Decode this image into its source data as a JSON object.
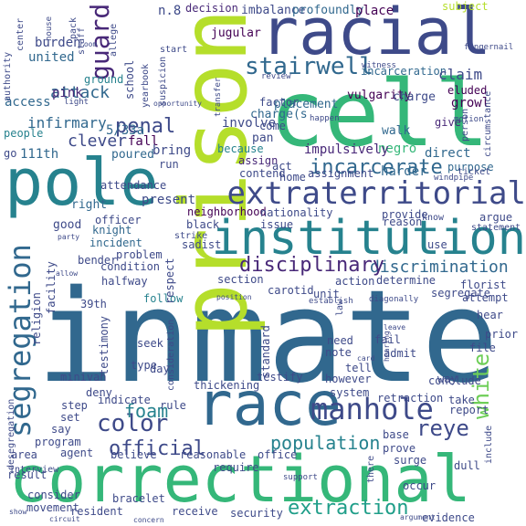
{
  "colors": {
    "background": "#ffffff",
    "palette": [
      "#440154",
      "#482878",
      "#3e4a89",
      "#31688e",
      "#26828e",
      "#1f9e89",
      "#35b779",
      "#6ece58",
      "#b5de2b",
      "#fde725"
    ]
  },
  "words": [
    {
      "text": "inmate",
      "color": "#31688e"
    },
    {
      "text": "cell",
      "color": "#35b779"
    },
    {
      "text": "prison",
      "color": "#b5de2b"
    },
    {
      "text": "racial",
      "color": "#3e4a89"
    },
    {
      "text": "correctional",
      "color": "#35b779"
    },
    {
      "text": "race",
      "color": "#31688e"
    },
    {
      "text": "pole",
      "color": "#26828e"
    },
    {
      "text": "institution",
      "color": "#26828e"
    },
    {
      "text": "extraterritorial",
      "color": "#3e4a89"
    },
    {
      "text": "segregation",
      "color": "#31688e"
    },
    {
      "text": "manhole",
      "color": "#3e4a89"
    },
    {
      "text": "stairwell",
      "color": "#31688e"
    },
    {
      "text": "guard",
      "color": "#482878"
    },
    {
      "text": "color",
      "color": "#3e4a89"
    },
    {
      "text": "white",
      "color": "#6ece58"
    },
    {
      "text": "extraction",
      "color": "#1f9e89"
    },
    {
      "text": "discrimination",
      "color": "#31688e"
    },
    {
      "text": "disciplinary",
      "color": "#482878"
    },
    {
      "text": "incarcerate",
      "color": "#31688e"
    },
    {
      "text": "official",
      "color": "#3e4a89"
    },
    {
      "text": "population",
      "color": "#26828e"
    },
    {
      "text": "reye",
      "color": "#3e4a89"
    },
    {
      "text": "penal",
      "color": "#3e4a89"
    },
    {
      "text": "attack",
      "color": "#31688e"
    },
    {
      "text": "foam",
      "color": "#26828e"
    },
    {
      "text": "infirmary",
      "color": "#31688e"
    },
    {
      "text": "5/33a",
      "color": "#31688e"
    },
    {
      "text": "clever",
      "color": "#3e4a89"
    },
    {
      "text": "fall",
      "color": "#440154"
    },
    {
      "text": "n.8",
      "color": "#3e4a89"
    },
    {
      "text": "decision",
      "color": "#482878"
    },
    {
      "text": "imbalance",
      "color": "#3e4a89"
    },
    {
      "text": "profoundly",
      "color": "#31688e"
    },
    {
      "text": "place",
      "color": "#440154"
    },
    {
      "text": "subject",
      "color": "#b5de2b"
    },
    {
      "text": "jugular",
      "color": "#440154"
    },
    {
      "text": "incarceration",
      "color": "#31688e"
    },
    {
      "text": "claim",
      "color": "#3e4a89"
    },
    {
      "text": "eluded",
      "color": "#440154"
    },
    {
      "text": "burden",
      "color": "#3e4a89"
    },
    {
      "text": "united",
      "color": "#31688e"
    },
    {
      "text": "pink",
      "color": "#482878"
    },
    {
      "text": "ground",
      "color": "#26828e"
    },
    {
      "text": "access",
      "color": "#31688e"
    },
    {
      "text": "people",
      "color": "#26828e"
    },
    {
      "text": "go",
      "color": "#3e4a89"
    },
    {
      "text": "111th",
      "color": "#31688e"
    },
    {
      "text": "vulgarity",
      "color": "#440154"
    },
    {
      "text": "growl",
      "color": "#440154"
    },
    {
      "text": "charge",
      "color": "#3e4a89"
    },
    {
      "text": "give",
      "color": "#482878"
    },
    {
      "text": "walk",
      "color": "#31688e"
    },
    {
      "text": "direct",
      "color": "#31688e"
    },
    {
      "text": "purpose",
      "color": "#31688e"
    },
    {
      "text": "harder",
      "color": "#31688e"
    },
    {
      "text": "negro",
      "color": "#35b779"
    },
    {
      "text": "impulsively",
      "color": "#482878"
    },
    {
      "text": "factor",
      "color": "#3e4a89"
    },
    {
      "text": "placement",
      "color": "#31688e"
    },
    {
      "text": "charge(s",
      "color": "#31688e"
    },
    {
      "text": "come",
      "color": "#3e4a89"
    },
    {
      "text": "involve",
      "color": "#3e4a89"
    },
    {
      "text": "pan",
      "color": "#3e4a89"
    },
    {
      "text": "because",
      "color": "#26828e"
    },
    {
      "text": "assign",
      "color": "#482878"
    },
    {
      "text": "act",
      "color": "#3e4a89"
    },
    {
      "text": "contend",
      "color": "#3e4a89"
    },
    {
      "text": "home",
      "color": "#3e4a89"
    },
    {
      "text": "assignment",
      "color": "#3e4a89"
    },
    {
      "text": "bring",
      "color": "#3e4a89"
    },
    {
      "text": "poured",
      "color": "#31688e"
    },
    {
      "text": "run",
      "color": "#3e4a89"
    },
    {
      "text": "present",
      "color": "#3e4a89"
    },
    {
      "text": "right",
      "color": "#31688e"
    },
    {
      "text": "good",
      "color": "#3e4a89"
    },
    {
      "text": "officer",
      "color": "#3e4a89"
    },
    {
      "text": "knight",
      "color": "#31688e"
    },
    {
      "text": "incident",
      "color": "#31688e"
    },
    {
      "text": "neighborhood",
      "color": "#440154"
    },
    {
      "text": "nationality",
      "color": "#3e4a89"
    },
    {
      "text": "provide",
      "color": "#3e4a89"
    },
    {
      "text": "black",
      "color": "#3e4a89"
    },
    {
      "text": "issue",
      "color": "#3e4a89"
    },
    {
      "text": "reason",
      "color": "#3e4a89"
    },
    {
      "text": "argue",
      "color": "#3e4a89"
    },
    {
      "text": "statement",
      "color": "#3e4a89"
    },
    {
      "text": "use",
      "color": "#3e4a89"
    },
    {
      "text": "sadist",
      "color": "#3e4a89"
    },
    {
      "text": "condition",
      "color": "#3e4a89"
    },
    {
      "text": "bender",
      "color": "#3e4a89"
    },
    {
      "text": "problem",
      "color": "#3e4a89"
    },
    {
      "text": "halfway",
      "color": "#3e4a89"
    },
    {
      "text": "follow",
      "color": "#26828e"
    },
    {
      "text": "section",
      "color": "#3e4a89"
    },
    {
      "text": "carotid",
      "color": "#3e4a89"
    },
    {
      "text": "unit",
      "color": "#3e4a89"
    },
    {
      "text": "determine",
      "color": "#3e4a89"
    },
    {
      "text": "segregate",
      "color": "#3e4a89"
    },
    {
      "text": "florist",
      "color": "#3e4a89"
    },
    {
      "text": "attempt",
      "color": "#3e4a89"
    },
    {
      "text": "action",
      "color": "#3e4a89"
    },
    {
      "text": "39th",
      "color": "#3e4a89"
    },
    {
      "text": "religion",
      "color": "#3e4a89"
    },
    {
      "text": "testimony",
      "color": "#3e4a89"
    },
    {
      "text": "seek",
      "color": "#3e4a89"
    },
    {
      "text": "need",
      "color": "#3e4a89"
    },
    {
      "text": "note",
      "color": "#3e4a89"
    },
    {
      "text": "fail",
      "color": "#3e4a89"
    },
    {
      "text": "admit",
      "color": "#3e4a89"
    },
    {
      "text": "hear",
      "color": "#3e4a89"
    },
    {
      "text": "prior",
      "color": "#3e4a89"
    },
    {
      "text": "file",
      "color": "#3e4a89"
    },
    {
      "text": "way",
      "color": "#3e4a89"
    },
    {
      "text": "conclude",
      "color": "#3e4a89"
    },
    {
      "text": "tell",
      "color": "#3e4a89"
    },
    {
      "text": "type",
      "color": "#3e4a89"
    },
    {
      "text": "day",
      "color": "#3e4a89"
    },
    {
      "text": "minivan",
      "color": "#3e4a89"
    },
    {
      "text": "deny",
      "color": "#3e4a89"
    },
    {
      "text": "step",
      "color": "#3e4a89"
    },
    {
      "text": "indicate",
      "color": "#3e4a89"
    },
    {
      "text": "rule",
      "color": "#3e4a89"
    },
    {
      "text": "thickening",
      "color": "#3e4a89"
    },
    {
      "text": "testify",
      "color": "#3e4a89"
    },
    {
      "text": "however",
      "color": "#3e4a89"
    },
    {
      "text": "system",
      "color": "#3e4a89"
    },
    {
      "text": "retraction",
      "color": "#3e4a89"
    },
    {
      "text": "take",
      "color": "#3e4a89"
    },
    {
      "text": "report",
      "color": "#3e4a89"
    },
    {
      "text": "set",
      "color": "#3e4a89"
    },
    {
      "text": "say",
      "color": "#3e4a89"
    },
    {
      "text": "program",
      "color": "#3e4a89"
    },
    {
      "text": "area",
      "color": "#3e4a89"
    },
    {
      "text": "agent",
      "color": "#3e4a89"
    },
    {
      "text": "believe",
      "color": "#3e4a89"
    },
    {
      "text": "reasonable",
      "color": "#3e4a89"
    },
    {
      "text": "require",
      "color": "#3e4a89"
    },
    {
      "text": "office",
      "color": "#3e4a89"
    },
    {
      "text": "prove",
      "color": "#3e4a89"
    },
    {
      "text": "surge",
      "color": "#3e4a89"
    },
    {
      "text": "base",
      "color": "#3e4a89"
    },
    {
      "text": "dull",
      "color": "#3e4a89"
    },
    {
      "text": "include",
      "color": "#3e4a89"
    },
    {
      "text": "consider",
      "color": "#3e4a89"
    },
    {
      "text": "result",
      "color": "#3e4a89"
    },
    {
      "text": "movement",
      "color": "#3e4a89"
    },
    {
      "text": "resident",
      "color": "#3e4a89"
    },
    {
      "text": "bracelet",
      "color": "#3e4a89"
    },
    {
      "text": "receive",
      "color": "#3e4a89"
    },
    {
      "text": "security",
      "color": "#3e4a89"
    },
    {
      "text": "occur",
      "color": "#3e4a89"
    },
    {
      "text": "evidence",
      "color": "#3e4a89"
    },
    {
      "text": "there",
      "color": "#3e4a89"
    },
    {
      "text": "interview",
      "color": "#3e4a89"
    },
    {
      "text": "desegregation",
      "color": "#3e4a89"
    },
    {
      "text": "consideration",
      "color": "#3e4a89"
    },
    {
      "text": "standard",
      "color": "#3e4a89"
    },
    {
      "text": "facility",
      "color": "#3e4a89"
    },
    {
      "text": "respect",
      "color": "#3e4a89"
    },
    {
      "text": "attendance",
      "color": "#3e4a89"
    },
    {
      "text": "school",
      "color": "#3e4a89"
    },
    {
      "text": "yearbook",
      "color": "#3e4a89"
    },
    {
      "text": "suspicion",
      "color": "#3e4a89"
    },
    {
      "text": "allege",
      "color": "#3e4a89"
    },
    {
      "text": "start",
      "color": "#3e4a89"
    },
    {
      "text": "staff",
      "color": "#3e4a89"
    },
    {
      "text": "pack",
      "color": "#3e4a89"
    },
    {
      "text": "center",
      "color": "#3e4a89"
    },
    {
      "text": "authority",
      "color": "#3e4a89"
    },
    {
      "text": "house",
      "color": "#3e4a89"
    },
    {
      "text": "light",
      "color": "#3e4a89"
    },
    {
      "text": "room",
      "color": "#3e4a89"
    },
    {
      "text": "opportunity",
      "color": "#3e4a89"
    },
    {
      "text": "review",
      "color": "#3e4a89"
    },
    {
      "text": "transfer",
      "color": "#3e4a89"
    },
    {
      "text": "witness",
      "color": "#3e4a89"
    },
    {
      "text": "fingernail",
      "color": "#3e4a89"
    },
    {
      "text": "person",
      "color": "#3e4a89"
    },
    {
      "text": "circumstance",
      "color": "#3e4a89"
    },
    {
      "text": "motion",
      "color": "#3e4a89"
    },
    {
      "text": "happen",
      "color": "#3e4a89"
    },
    {
      "text": "ticket",
      "color": "#3e4a89"
    },
    {
      "text": "windpipe",
      "color": "#3e4a89"
    },
    {
      "text": "know",
      "color": "#3e4a89"
    },
    {
      "text": "strike",
      "color": "#3e4a89"
    },
    {
      "text": "party",
      "color": "#3e4a89"
    },
    {
      "text": "allow",
      "color": "#3e4a89"
    },
    {
      "text": "law",
      "color": "#3e4a89"
    },
    {
      "text": "position",
      "color": "#3e4a89"
    },
    {
      "text": "establish",
      "color": "#3e4a89"
    },
    {
      "text": "diagonally",
      "color": "#3e4a89"
    },
    {
      "text": "leave",
      "color": "#3e4a89"
    },
    {
      "text": "hearing",
      "color": "#3e4a89"
    },
    {
      "text": "card",
      "color": "#3e4a89"
    },
    {
      "text": "support",
      "color": "#3e4a89"
    },
    {
      "text": "show",
      "color": "#3e4a89"
    },
    {
      "text": "circuit",
      "color": "#3e4a89"
    },
    {
      "text": "concern",
      "color": "#3e4a89"
    },
    {
      "text": "argument",
      "color": "#3e4a89"
    }
  ]
}
